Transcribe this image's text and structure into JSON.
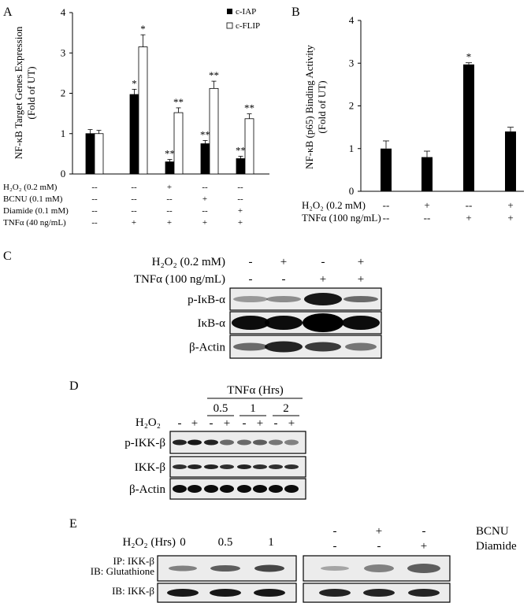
{
  "panel_a": {
    "letter": "A",
    "ylabel_line1": "NF-κB Target Genes Expression",
    "ylabel_line2": "(Fold of UT)",
    "legend": [
      "c-IAP",
      "c-FLIP"
    ],
    "yticks": [
      "0",
      "1",
      "2",
      "3",
      "4"
    ],
    "rows": [
      {
        "label": "H₂O₂ (0.2 mM)",
        "values": [
          "--",
          "--",
          "+",
          "--",
          "--"
        ]
      },
      {
        "label": "BCNU (0.1 mM)",
        "values": [
          "--",
          "--",
          "--",
          "+",
          "--"
        ]
      },
      {
        "label": "Diamide (0.1 mM)",
        "values": [
          "--",
          "--",
          "--",
          "--",
          "+"
        ]
      },
      {
        "label": "TNFα (40 ng/mL)",
        "values": [
          "--",
          "+",
          "+",
          "+",
          "+"
        ]
      }
    ]
  },
  "panel_b": {
    "letter": "B",
    "ylabel_line1": "NF-κB (p65) Binding Activity",
    "ylabel_line2": "(Fold of UT)",
    "yticks": [
      "0",
      "1",
      "2",
      "3",
      "4"
    ],
    "rows": [
      {
        "label": "H₂O₂ (0.2 mM)",
        "values": [
          "--",
          "+",
          "--",
          "+"
        ]
      },
      {
        "label": "TNFα (100 ng/mL)",
        "values": [
          "--",
          "--",
          "+",
          "+"
        ]
      }
    ]
  },
  "chart_data": [
    {
      "type": "bar",
      "categories": [
        "1",
        "2",
        "3",
        "4",
        "5"
      ],
      "ylim": [
        0,
        4
      ],
      "ylabel": "NF-κB Target Genes Expression (Fold of UT)",
      "series": [
        {
          "name": "c-IAP",
          "values": [
            1.0,
            1.97,
            0.3,
            0.75,
            0.38
          ],
          "errors": [
            0.1,
            0.13,
            0.06,
            0.08,
            0.06
          ],
          "marks": [
            "",
            "*",
            "**",
            "**",
            "**"
          ],
          "color": "#000000"
        },
        {
          "name": "c-FLIP",
          "values": [
            1.0,
            3.15,
            1.52,
            2.12,
            1.37
          ],
          "errors": [
            0.08,
            0.3,
            0.12,
            0.18,
            0.12
          ],
          "marks": [
            "",
            "*",
            "**",
            "**",
            "**"
          ],
          "color": "#ffffff"
        }
      ]
    },
    {
      "type": "bar",
      "categories": [
        "1",
        "2",
        "3",
        "4"
      ],
      "ylim": [
        0,
        4
      ],
      "ylabel": "NF-κB (p65) Binding Activity (Fold of UT)",
      "series": [
        {
          "values": [
            1.0,
            0.8,
            2.97,
            1.4
          ],
          "errors": [
            0.18,
            0.14,
            0.04,
            0.1
          ],
          "marks": [
            "",
            "",
            "*",
            ""
          ],
          "color": "#000000"
        }
      ]
    }
  ],
  "panel_c": {
    "letter": "C",
    "rows": [
      {
        "label": "H₂O₂ (0.2 mM)",
        "values": [
          "-",
          "+",
          "-",
          "+"
        ]
      },
      {
        "label": "TNFα (100 ng/mL)",
        "values": [
          "-",
          "-",
          "+",
          "+"
        ]
      }
    ],
    "blots": [
      "p-IκB-α",
      "IκB-α",
      "β-Actin"
    ]
  },
  "panel_d": {
    "letter": "D",
    "header": "TNFα (Hrs)",
    "times": [
      "0.5",
      "1",
      "2"
    ],
    "h2o2_label": "H₂O₂",
    "signs": [
      "-",
      "+",
      "-",
      "+",
      "-",
      "+",
      "-",
      "+"
    ],
    "blots": [
      "p-IKK-β",
      "IKK-β",
      "β-Actin"
    ]
  },
  "panel_e": {
    "letter": "E",
    "h2o2_label": "H₂O₂ (Hrs)",
    "times": [
      "0",
      "0.5",
      "1"
    ],
    "bcnu_label": "BCNU",
    "diamide_label": "Diamide",
    "bcnu_signs": [
      "-",
      "+",
      "-"
    ],
    "diamide_signs": [
      "-",
      "-",
      "+"
    ],
    "ip_line1": "IP: IKK-β",
    "ip_line2": "IB: Glutathione",
    "ib_label": "IB: IKK-β"
  }
}
